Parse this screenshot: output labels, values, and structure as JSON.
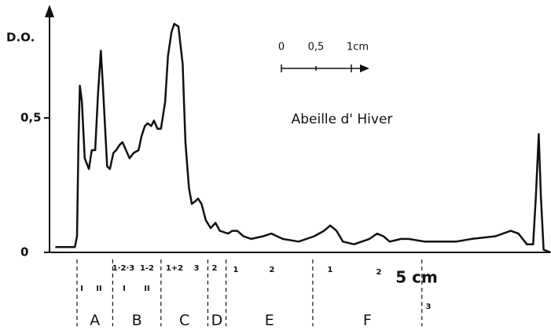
{
  "chart_data": {
    "type": "line",
    "title": "Abeille d' Hiver",
    "y_label": "D.O.",
    "x_label": "5 cm",
    "scale_bar": [
      "0",
      "0,5",
      "1cm"
    ],
    "xlim": [
      -0.35,
      6.8
    ],
    "ylim": [
      0,
      0.92
    ],
    "yticks": [
      {
        "value": 0,
        "label": "0"
      },
      {
        "value": 0.5,
        "label": "0,5"
      }
    ],
    "series": [
      {
        "color": "#111111",
        "x": [
          -0.31,
          -0.03,
          0,
          0.02,
          0.04,
          0.07,
          0.11,
          0.17,
          0.21,
          0.26,
          0.3,
          0.34,
          0.37,
          0.43,
          0.47,
          0.52,
          0.56,
          0.61,
          0.65,
          0.7,
          0.75,
          0.81,
          0.88,
          0.92,
          0.97,
          1.01,
          1.06,
          1.1,
          1.15,
          1.2,
          1.26,
          1.3,
          1.35,
          1.39,
          1.45,
          1.51,
          1.55,
          1.6,
          1.64,
          1.69,
          1.73,
          1.78,
          1.84,
          1.91,
          1.98,
          2.04,
          2.16,
          2.22,
          2.29,
          2.38,
          2.49,
          2.66,
          2.78,
          2.94,
          3.17,
          3.39,
          3.53,
          3.62,
          3.71,
          3.8,
          3.96,
          4.18,
          4.29,
          4.38,
          4.47,
          4.63,
          4.74,
          4.97,
          5.42,
          5.64,
          5.98,
          6.2,
          6.31,
          6.43,
          6.52,
          6.56,
          6.6,
          6.63,
          6.67,
          6.77
        ],
        "values": [
          0.02,
          0.02,
          0.06,
          0.41,
          0.62,
          0.56,
          0.35,
          0.31,
          0.38,
          0.38,
          0.59,
          0.75,
          0.62,
          0.32,
          0.31,
          0.37,
          0.38,
          0.4,
          0.41,
          0.38,
          0.35,
          0.37,
          0.38,
          0.43,
          0.47,
          0.48,
          0.47,
          0.49,
          0.46,
          0.46,
          0.56,
          0.73,
          0.82,
          0.85,
          0.84,
          0.7,
          0.41,
          0.24,
          0.18,
          0.19,
          0.2,
          0.18,
          0.12,
          0.09,
          0.11,
          0.08,
          0.07,
          0.08,
          0.08,
          0.06,
          0.05,
          0.06,
          0.07,
          0.05,
          0.04,
          0.06,
          0.08,
          0.1,
          0.08,
          0.04,
          0.03,
          0.05,
          0.07,
          0.06,
          0.04,
          0.05,
          0.05,
          0.04,
          0.04,
          0.05,
          0.06,
          0.08,
          0.07,
          0.03,
          0.03,
          0.21,
          0.44,
          0.21,
          0.01,
          0.0
        ]
      }
    ],
    "fraction_bounds": [
      0,
      0.51,
      1.2,
      1.87,
      2.13,
      3.37,
      4.93
    ],
    "fractions": [
      "A",
      "B",
      "C",
      "D",
      "E",
      "F"
    ],
    "sub_labels": [
      "I",
      "II",
      "1·2·3",
      "I",
      "1-2",
      "II",
      "1+2",
      "3",
      "2",
      "1",
      "2",
      "1",
      "2",
      "3"
    ]
  }
}
